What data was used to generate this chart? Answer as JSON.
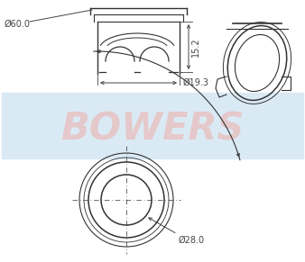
{
  "bg_color": "#ffffff",
  "watermark_text": "BOWERS",
  "watermark_color": "#f0a8a0",
  "watermark_alpha": 0.5,
  "light_blue_color": "#daeaf5",
  "dim_color": "#444444",
  "line_color": "#333333",
  "dim_60": "Ø60.0",
  "dim_193": "Ø19.3",
  "dim_152": "15.2",
  "dim_280": "Ø28.0",
  "font_size_dim": 7.0,
  "figw": 3.38,
  "figh": 2.91,
  "dpi": 100
}
